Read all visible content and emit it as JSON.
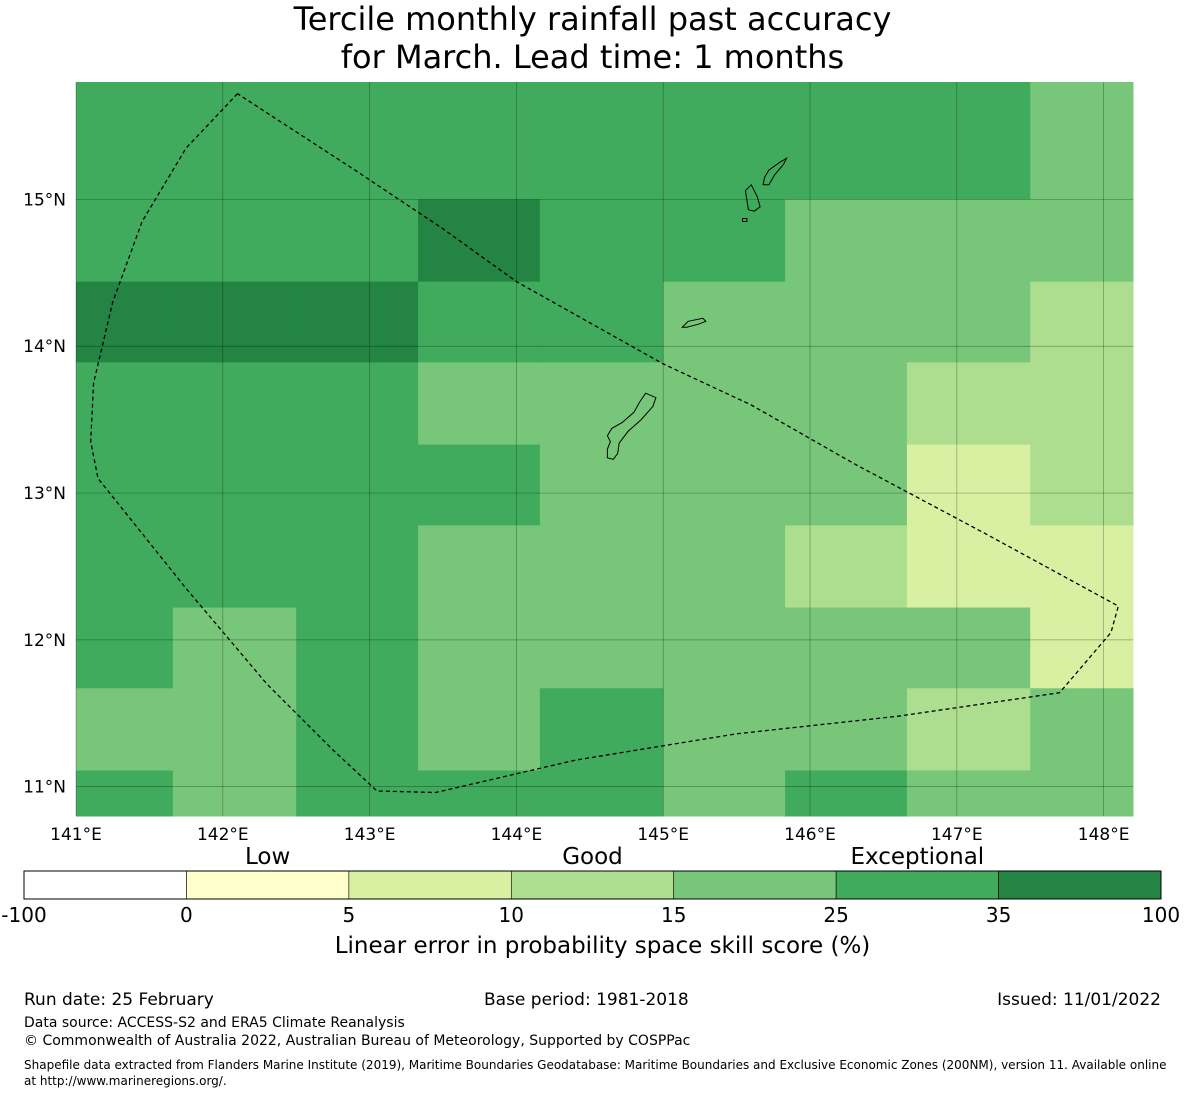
{
  "title": {
    "line1": "Tercile monthly rainfall past accuracy",
    "line2": "for March. Lead time: 1 months"
  },
  "map": {
    "lon_range": [
      141.0,
      148.2
    ],
    "lat_range": [
      10.8,
      15.8
    ],
    "x_ticks": [
      {
        "value": 141,
        "label": "141°E"
      },
      {
        "value": 142,
        "label": "142°E"
      },
      {
        "value": 143,
        "label": "143°E"
      },
      {
        "value": 144,
        "label": "144°E"
      },
      {
        "value": 145,
        "label": "145°E"
      },
      {
        "value": 146,
        "label": "146°E"
      },
      {
        "value": 147,
        "label": "147°E"
      },
      {
        "value": 148,
        "label": "148°E"
      }
    ],
    "y_ticks": [
      {
        "value": 15,
        "label": "15°N"
      },
      {
        "value": 14,
        "label": "14°N"
      },
      {
        "value": 13,
        "label": "13°N"
      },
      {
        "value": 12,
        "label": "12°N"
      },
      {
        "value": 11,
        "label": "11°N"
      }
    ],
    "grid": true,
    "grid_lon_edges": [
      141.0,
      141.66,
      142.5,
      143.33,
      144.16,
      145.0,
      145.83,
      146.66,
      147.5,
      148.2
    ],
    "grid_lat_edges": [
      15.8,
      15.0,
      14.44,
      13.89,
      13.33,
      12.78,
      12.22,
      11.67,
      11.11,
      10.8
    ],
    "skill_category_grid": [
      [
        5,
        5,
        5,
        5,
        5,
        5,
        5,
        5,
        4
      ],
      [
        5,
        5,
        5,
        6,
        5,
        5,
        4,
        4,
        4
      ],
      [
        6,
        6,
        6,
        5,
        5,
        4,
        4,
        4,
        3
      ],
      [
        5,
        5,
        5,
        4,
        4,
        4,
        4,
        3,
        3
      ],
      [
        5,
        5,
        5,
        5,
        4,
        4,
        4,
        2,
        3
      ],
      [
        5,
        5,
        5,
        4,
        4,
        4,
        3,
        2,
        2
      ],
      [
        5,
        4,
        5,
        4,
        4,
        4,
        4,
        4,
        2
      ],
      [
        4,
        4,
        5,
        4,
        5,
        4,
        4,
        3,
        4
      ],
      [
        5,
        4,
        5,
        5,
        5,
        4,
        5,
        4,
        4
      ]
    ],
    "eez_boundary": [
      [
        142.1,
        15.72
      ],
      [
        141.75,
        15.35
      ],
      [
        141.45,
        14.85
      ],
      [
        141.25,
        14.3
      ],
      [
        141.12,
        13.75
      ],
      [
        141.1,
        13.35
      ],
      [
        141.15,
        13.1
      ],
      [
        141.35,
        12.85
      ],
      [
        141.75,
        12.35
      ],
      [
        142.3,
        11.7
      ],
      [
        142.75,
        11.25
      ],
      [
        143.05,
        10.97
      ],
      [
        143.45,
        10.96
      ],
      [
        144.4,
        11.18
      ],
      [
        145.5,
        11.36
      ],
      [
        146.6,
        11.48
      ],
      [
        147.7,
        11.64
      ],
      [
        148.05,
        12.05
      ],
      [
        148.1,
        12.23
      ],
      [
        147.2,
        12.72
      ],
      [
        146.3,
        13.2
      ],
      [
        145.6,
        13.6
      ],
      [
        145.0,
        13.88
      ],
      [
        144.0,
        14.44
      ],
      [
        143.5,
        14.8
      ],
      [
        142.9,
        15.2
      ],
      [
        142.1,
        15.72
      ]
    ],
    "islands": [
      {
        "name": "guam",
        "outline": [
          [
            144.62,
            13.24
          ],
          [
            144.66,
            13.23
          ],
          [
            144.69,
            13.27
          ],
          [
            144.7,
            13.34
          ],
          [
            144.76,
            13.42
          ],
          [
            144.85,
            13.5
          ],
          [
            144.93,
            13.59
          ],
          [
            144.95,
            13.65
          ],
          [
            144.88,
            13.68
          ],
          [
            144.84,
            13.62
          ],
          [
            144.8,
            13.55
          ],
          [
            144.72,
            13.48
          ],
          [
            144.65,
            13.44
          ],
          [
            144.62,
            13.39
          ],
          [
            144.64,
            13.35
          ],
          [
            144.62,
            13.3
          ],
          [
            144.62,
            13.24
          ]
        ]
      },
      {
        "name": "rota",
        "outline": [
          [
            145.13,
            14.13
          ],
          [
            145.17,
            14.17
          ],
          [
            145.27,
            14.19
          ],
          [
            145.29,
            14.17
          ],
          [
            145.24,
            14.15
          ],
          [
            145.16,
            14.13
          ],
          [
            145.13,
            14.13
          ]
        ]
      },
      {
        "name": "tinian",
        "outline": [
          [
            145.58,
            14.93
          ],
          [
            145.62,
            14.92
          ],
          [
            145.66,
            14.95
          ],
          [
            145.64,
            15.02
          ],
          [
            145.6,
            15.1
          ],
          [
            145.56,
            15.06
          ],
          [
            145.58,
            14.93
          ]
        ]
      },
      {
        "name": "saipan",
        "outline": [
          [
            145.68,
            15.1
          ],
          [
            145.72,
            15.1
          ],
          [
            145.76,
            15.17
          ],
          [
            145.82,
            15.24
          ],
          [
            145.84,
            15.28
          ],
          [
            145.79,
            15.25
          ],
          [
            145.72,
            15.2
          ],
          [
            145.69,
            15.15
          ],
          [
            145.68,
            15.1
          ]
        ]
      },
      {
        "name": "aguijan",
        "outline": [
          [
            145.54,
            14.85
          ],
          [
            145.57,
            14.85
          ],
          [
            145.57,
            14.87
          ],
          [
            145.54,
            14.87
          ],
          [
            145.54,
            14.85
          ]
        ]
      }
    ]
  },
  "colorbar": {
    "categories": [
      {
        "label": "Low",
        "under_bin": 2
      },
      {
        "label": "Good",
        "under_bin": 4
      },
      {
        "label": "Exceptional",
        "under_bin": 6
      }
    ],
    "boundaries": [
      "-100",
      "0",
      "5",
      "10",
      "15",
      "25",
      "35",
      "100"
    ],
    "colors": [
      "#ffffff",
      "#ffffcc",
      "#d9f0a3",
      "#addd8e",
      "#78c679",
      "#41ab5d",
      "#238443"
    ],
    "label": "Linear error in probability space skill score (%)"
  },
  "footer": {
    "run_date": "Run date: 25 February",
    "base_period": "Base period: 1981-2018",
    "issued": "Issued: 11/01/2022",
    "data_source": "Data source: ACCESS-S2 and ERA5 Climate Reanalysis",
    "copyright": "© Commonwealth of Australia 2022, Australian Bureau of Meteorology, Supported by COSPPac",
    "shapefile": "Shapefile data extracted from Flanders Marine Institute (2019), Maritime Boundaries Geodatabase: Maritime Boundaries and Exclusive Economic Zones (200NM), version 11. Available online at http://www.marineregions.org/."
  }
}
